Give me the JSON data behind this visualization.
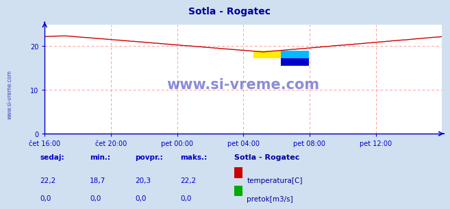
{
  "title": "Sotla - Rogatec",
  "title_color": "#000099",
  "bg_color": "#d0e0f0",
  "plot_bg_color": "#ffffff",
  "grid_color": "#ff9999",
  "axis_color": "#0000cc",
  "tick_color": "#0000cc",
  "temp_color": "#cc0000",
  "flow_color": "#00aa00",
  "watermark_color": "#0000aa",
  "xlabel_labels": [
    "čet 16:00",
    "čet 20:00",
    "pet 00:00",
    "pet 04:00",
    "pet 08:00",
    "pet 12:00"
  ],
  "ylim": [
    0,
    25
  ],
  "yticks": [
    0,
    10,
    20
  ],
  "num_points": 289,
  "legend_title": "Sotla - Rogatec",
  "sedaj": "22,2",
  "min_val": "18,7",
  "povpr": "20,3",
  "maks": "22,2",
  "sedaj2": "0,0",
  "min_val2": "0,0",
  "povpr2": "0,0",
  "maks2": "0,0"
}
